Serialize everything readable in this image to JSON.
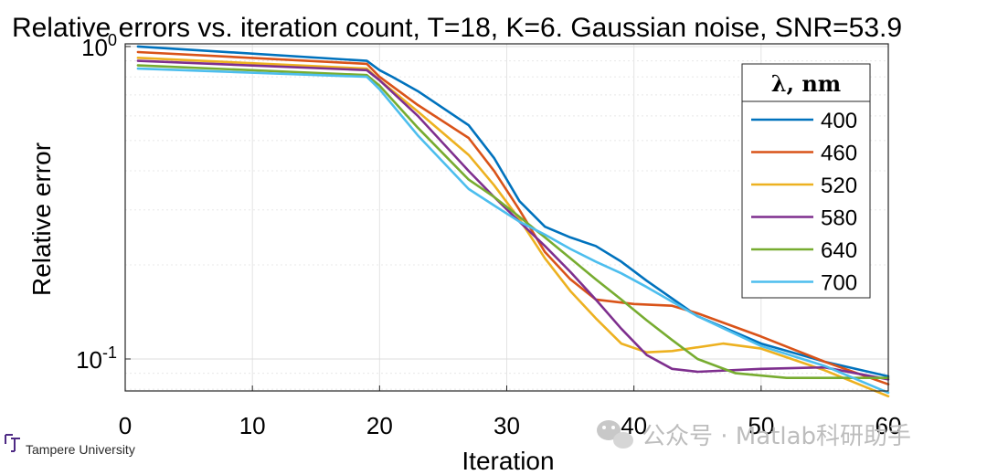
{
  "chart_data": {
    "type": "line",
    "title": "Relative errors vs. iteration count, T=18, K=6. Gaussian noise, SNR=53.9",
    "xlabel": "Iteration",
    "ylabel": "Relative error",
    "xlim": [
      0,
      60
    ],
    "ylim": [
      0.079,
      1.02
    ],
    "yscale": "log",
    "grid": true,
    "x_ticks": [
      "0",
      "10",
      "20",
      "30",
      "40",
      "50",
      "60"
    ],
    "y_ticks": [
      {
        "base": "10",
        "exp": "0"
      },
      {
        "base": "10",
        "exp": "-1"
      }
    ],
    "legend": {
      "title": "λ, nm",
      "placement": "top-right"
    },
    "series": [
      {
        "name": "400",
        "color": "#0072BD",
        "x": [
          1,
          19,
          20,
          21,
          23,
          27,
          29,
          31,
          33,
          35,
          37,
          39,
          41,
          45,
          50,
          55,
          60
        ],
        "y": [
          1.0,
          0.9,
          0.84,
          0.8,
          0.72,
          0.56,
          0.44,
          0.32,
          0.265,
          0.245,
          0.23,
          0.205,
          0.178,
          0.137,
          0.112,
          0.098,
          0.088
        ]
      },
      {
        "name": "460",
        "color": "#D95319",
        "x": [
          1,
          19,
          20,
          23,
          27,
          29,
          31,
          33,
          35,
          37,
          40,
          43,
          45,
          50,
          55,
          60
        ],
        "y": [
          0.96,
          0.88,
          0.8,
          0.65,
          0.51,
          0.4,
          0.3,
          0.22,
          0.18,
          0.155,
          0.15,
          0.148,
          0.14,
          0.118,
          0.098,
          0.083
        ]
      },
      {
        "name": "520",
        "color": "#EDB120",
        "x": [
          1,
          19,
          20,
          23,
          27,
          29,
          31,
          33,
          35,
          37,
          39,
          41,
          43,
          47,
          50,
          55,
          60
        ],
        "y": [
          0.92,
          0.85,
          0.78,
          0.62,
          0.45,
          0.36,
          0.28,
          0.21,
          0.165,
          0.135,
          0.112,
          0.105,
          0.106,
          0.112,
          0.108,
          0.092,
          0.076
        ]
      },
      {
        "name": "580",
        "color": "#7E2F8E",
        "x": [
          1,
          19,
          20,
          23,
          27,
          29,
          31,
          33,
          35,
          37,
          39,
          41,
          43,
          45,
          50,
          55,
          60
        ],
        "y": [
          0.9,
          0.84,
          0.78,
          0.6,
          0.4,
          0.33,
          0.275,
          0.23,
          0.19,
          0.155,
          0.125,
          0.103,
          0.093,
          0.091,
          0.093,
          0.094,
          0.086
        ]
      },
      {
        "name": "640",
        "color": "#77AC30",
        "x": [
          1,
          19,
          20,
          23,
          27,
          29,
          31,
          33,
          35,
          37,
          39,
          41,
          43,
          45,
          48,
          52,
          55,
          60
        ],
        "y": [
          0.87,
          0.81,
          0.75,
          0.55,
          0.375,
          0.33,
          0.285,
          0.245,
          0.21,
          0.18,
          0.155,
          0.133,
          0.115,
          0.1,
          0.09,
          0.087,
          0.087,
          0.087
        ]
      },
      {
        "name": "700",
        "color": "#4DBEEE",
        "x": [
          1,
          19,
          20,
          23,
          27,
          29,
          31,
          33,
          35,
          37,
          39,
          41,
          45,
          50,
          55,
          60
        ],
        "y": [
          0.85,
          0.8,
          0.73,
          0.52,
          0.35,
          0.31,
          0.275,
          0.25,
          0.225,
          0.205,
          0.188,
          0.17,
          0.137,
          0.11,
          0.095,
          0.078
        ]
      }
    ]
  },
  "logo": {
    "text": "Tampere University"
  },
  "watermark": {
    "text": "公众号 · Matlab科研助手"
  }
}
